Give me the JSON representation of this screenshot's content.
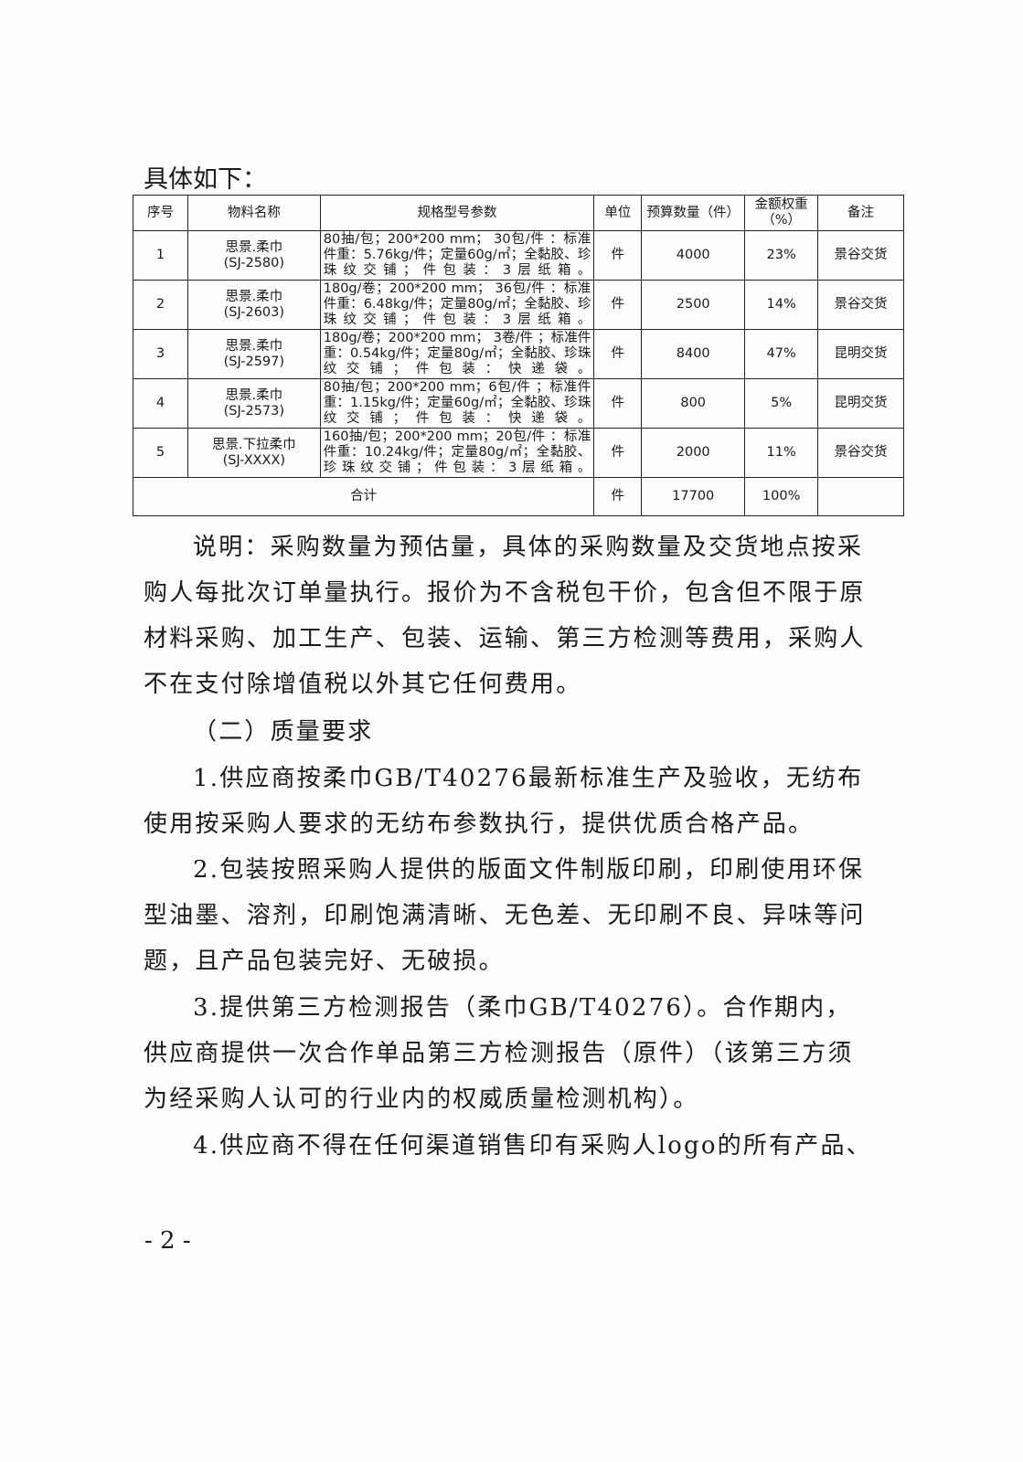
{
  "intro": "具体如下：",
  "table": {
    "headers": [
      "序号",
      "物料名称",
      "规格型号参数",
      "单位",
      "预算数量（件）",
      "金额权重（%）",
      "备注"
    ],
    "rows": [
      {
        "no": "1",
        "name": "思景.柔巾",
        "code": "(SJ-2580)",
        "spec": "80抽/包；200*200 mm； 30包/件 ：标准件重：5.76kg/件；定量60g/㎡；全黏胶、珍珠纹交铺；件包装：3层纸箱。",
        "unit": "件",
        "qty": "4000",
        "weight": "23%",
        "note": "景谷交货"
      },
      {
        "no": "2",
        "name": "思景.柔巾",
        "code": "(SJ-2603)",
        "spec": "180g/卷；200*200 mm； 36包/件 ：标准件重：6.48kg/件；定量80g/㎡；全黏胶、珍珠纹交铺；件包装：3层纸箱。",
        "unit": "件",
        "qty": "2500",
        "weight": "14%",
        "note": "景谷交货"
      },
      {
        "no": "3",
        "name": "思景.柔巾",
        "code": "(SJ-2597)",
        "spec": "180g/卷；200*200 mm； 3卷/件 ；标准件重：0.54kg/件；定量80g/㎡；全黏胶、珍珠纹交铺；件包装：快递袋。",
        "unit": "件",
        "qty": "8400",
        "weight": "47%",
        "note": "昆明交货"
      },
      {
        "no": "4",
        "name": "思景.柔巾",
        "code": "(SJ-2573)",
        "spec": "80抽/包；200*200 mm；6包/件 ；标准件重：1.15kg/件；定量60g/㎡；全黏胶、珍珠纹交铺；件包装：快递袋。",
        "unit": "件",
        "qty": "800",
        "weight": "5%",
        "note": "昆明交货"
      },
      {
        "no": "5",
        "name": "思景.下拉柔巾",
        "code": "(SJ-XXXX)",
        "spec": "160抽/包；200*200 mm；20包/件 ：标准件重：10.24kg/件；定量80g/㎡；全黏胶、珍珠纹交铺；件包装：3层纸箱。",
        "unit": "件",
        "qty": "2000",
        "weight": "11%",
        "note": "景谷交货"
      }
    ],
    "total": {
      "label": "合计",
      "unit": "件",
      "qty": "17700",
      "weight": "100%",
      "note": ""
    }
  },
  "paragraphs": [
    "说明：采购数量为预估量，具体的采购数量及交货地点按采购人每批次订单量执行。报价为不含税包干价，包含但不限于原材料采购、加工生产、包装、运输、第三方检测等费用，采购人不在支付除增值税以外其它任何费用。",
    "（二）质量要求",
    "1.供应商按柔巾GB/T40276最新标准生产及验收，无纺布使用按采购人要求的无纺布参数执行，提供优质合格产品。",
    "2.包装按照采购人提供的版面文件制版印刷，印刷使用环保型油墨、溶剂，印刷饱满清晰、无色差、无印刷不良、异味等问题，且产品包装完好、无破损。",
    "3.提供第三方检测报告（柔巾GB/T40276）。合作期内，供应商提供一次合作单品第三方检测报告（原件）（该第三方须为经采购人认可的行业内的权威质量检测机构）。",
    "4.供应商不得在任何渠道销售印有采购人logo的所有产品、"
  ],
  "page_number": "- 2 -"
}
